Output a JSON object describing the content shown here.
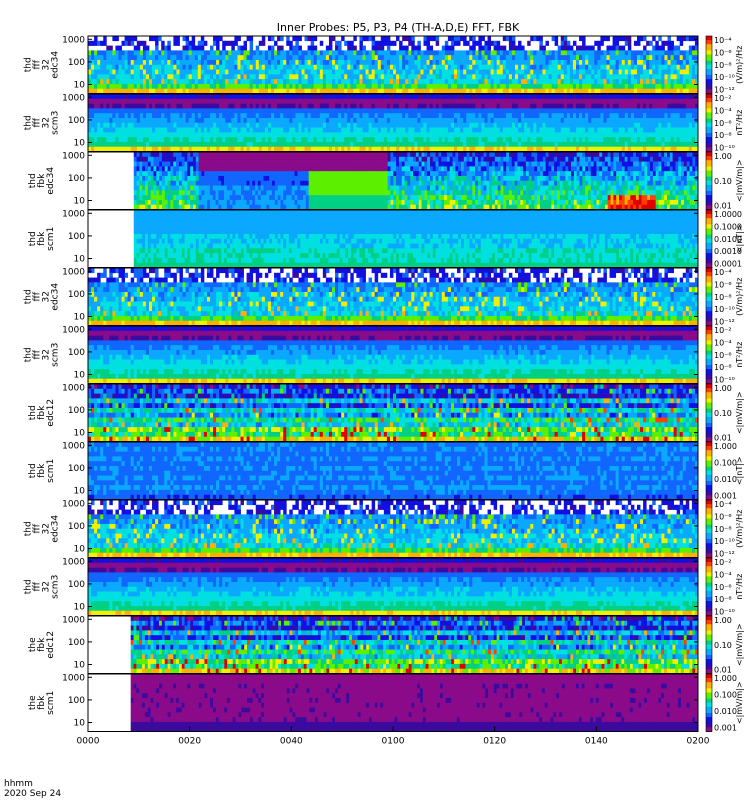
{
  "chart_data": {
    "type": "heatmap",
    "title": "Inner Probes: P5, P3, P4 (TH-A,D,E) FFT, FBK",
    "x_tick_labels": [
      "0000",
      "0020",
      "0040",
      "0100",
      "0120",
      "0140",
      "0200"
    ],
    "footer_lines": [
      "hhmm",
      "2020 Sep 24"
    ],
    "y_tick_labels": [
      "10",
      "100",
      "1000"
    ],
    "panels": [
      {
        "label": [
          "thd",
          "fff",
          "32",
          "edc34"
        ],
        "kind": "ffte",
        "data_start": 0.0,
        "unit": "(V/m)²/Hz",
        "cb_ticks": [
          "10⁻⁴",
          "10⁻⁶",
          "10⁻⁸",
          "10⁻¹⁰",
          "10⁻¹²"
        ]
      },
      {
        "label": [
          "thd",
          "fff",
          "32",
          "scm3"
        ],
        "kind": "ffts",
        "data_start": 0.0,
        "unit": "nT²/Hz",
        "cb_ticks": [
          "10⁻²",
          "10⁻⁴",
          "10⁻⁶",
          "10⁻⁸",
          "10⁻¹⁰"
        ]
      },
      {
        "label": [
          "thd",
          "fbk",
          "edc34"
        ],
        "kind": "fbke_a",
        "data_start": 0.075,
        "unit": "<|mV/m|>",
        "cb_ticks": [
          "1.00",
          "0.10",
          "0.01"
        ]
      },
      {
        "label": [
          "thd",
          "fbk",
          "scm1"
        ],
        "kind": "fbks_a",
        "data_start": 0.075,
        "unit": "<|nT|>",
        "cb_ticks": [
          "1.0000",
          "0.1000",
          "0.0100",
          "0.0010",
          "0.0001"
        ]
      },
      {
        "label": [
          "thd",
          "fff",
          "32",
          "edc34"
        ],
        "kind": "ffte",
        "data_start": 0.0,
        "unit": "(V/m)²/Hz",
        "cb_ticks": [
          "10⁻⁴",
          "10⁻⁶",
          "10⁻⁸",
          "10⁻¹⁰",
          "10⁻¹²"
        ]
      },
      {
        "label": [
          "thd",
          "fff",
          "32",
          "scm3"
        ],
        "kind": "ffts",
        "data_start": 0.0,
        "unit": "nT²/Hz",
        "cb_ticks": [
          "10⁻²",
          "10⁻⁴",
          "10⁻⁶",
          "10⁻⁸",
          "10⁻¹⁰"
        ]
      },
      {
        "label": [
          "thd",
          "fbk",
          "edc12"
        ],
        "kind": "fbke",
        "data_start": 0.0,
        "unit": "<|mV/m|>",
        "cb_ticks": [
          "1.00",
          "0.10",
          "0.01"
        ]
      },
      {
        "label": [
          "thd",
          "fbk",
          "scm1"
        ],
        "kind": "fbks",
        "data_start": 0.0,
        "unit": "<|nT|>",
        "cb_ticks": [
          "1.000",
          "0.100",
          "0.010",
          "0.001"
        ]
      },
      {
        "label": [
          "thd",
          "fff",
          "32",
          "edc34"
        ],
        "kind": "ffte",
        "data_start": 0.0,
        "unit": "(V/m)²/Hz",
        "cb_ticks": [
          "10⁻⁴",
          "10⁻⁶",
          "10⁻⁸",
          "10⁻¹⁰",
          "10⁻¹²"
        ]
      },
      {
        "label": [
          "thd",
          "fff",
          "32",
          "scm3"
        ],
        "kind": "ffts",
        "data_start": 0.0,
        "unit": "nT²/Hz",
        "cb_ticks": [
          "10⁻²",
          "10⁻⁴",
          "10⁻⁶",
          "10⁻⁸",
          "10⁻¹⁰"
        ]
      },
      {
        "label": [
          "the",
          "fbk",
          "edc12"
        ],
        "kind": "fbke",
        "data_start": 0.07,
        "unit": "<|mV/m|>",
        "cb_ticks": [
          "1.00",
          "0.10",
          "0.01"
        ]
      },
      {
        "label": [
          "the",
          "fbk",
          "scm1"
        ],
        "kind": "fbks_e",
        "data_start": 0.07,
        "unit": "<|mV/m|>",
        "cb_ticks": [
          "1.000",
          "0.100",
          "0.010",
          "0.001"
        ]
      }
    ],
    "colormap": [
      "#ffffff",
      "#8a0a8a",
      "#3b0a9e",
      "#1010e0",
      "#1066ff",
      "#0aa8ff",
      "#00e0e0",
      "#00d084",
      "#5cf000",
      "#f0f000",
      "#ffb000",
      "#ff4000",
      "#e00000"
    ]
  }
}
